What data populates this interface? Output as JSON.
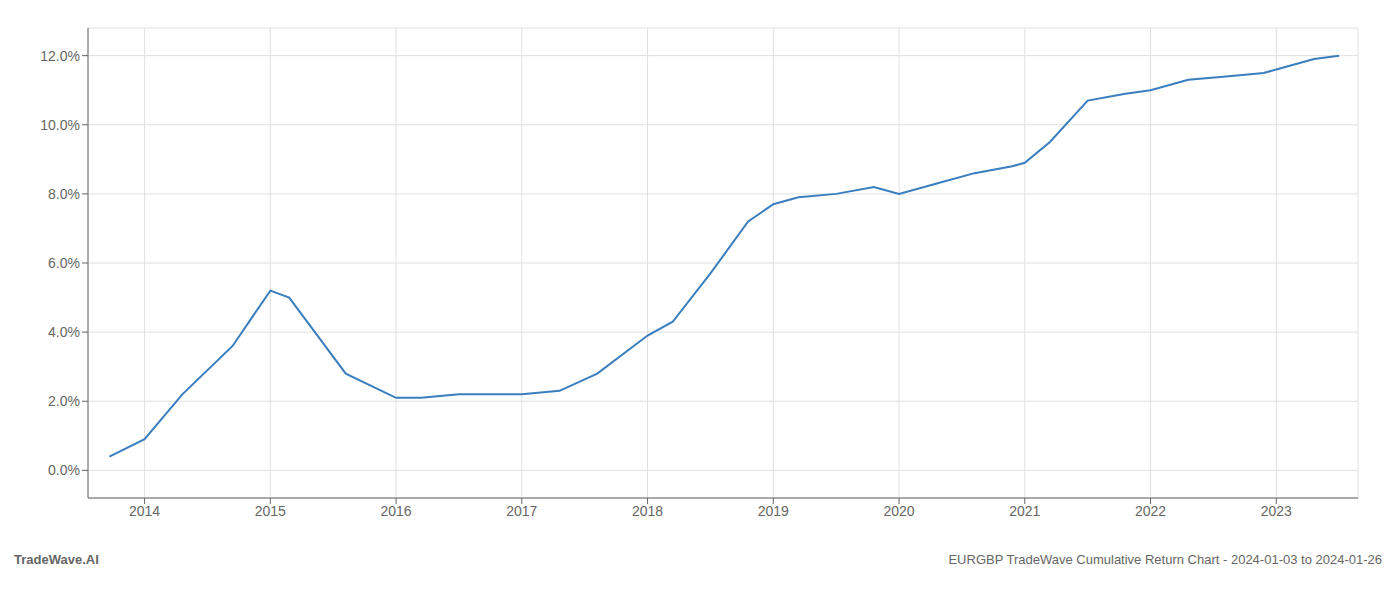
{
  "chart_data": {
    "type": "line",
    "x": [
      2013.72,
      2014.0,
      2014.3,
      2014.7,
      2015.0,
      2015.15,
      2015.6,
      2016.0,
      2016.2,
      2016.5,
      2017.0,
      2017.3,
      2017.6,
      2018.0,
      2018.2,
      2018.5,
      2018.8,
      2019.0,
      2019.2,
      2019.5,
      2019.8,
      2020.0,
      2020.3,
      2020.6,
      2020.9,
      2021.0,
      2021.2,
      2021.5,
      2021.8,
      2022.0,
      2022.3,
      2022.6,
      2022.9,
      2023.0,
      2023.3,
      2023.5
    ],
    "values": [
      0.004,
      0.009,
      0.022,
      0.036,
      0.052,
      0.05,
      0.028,
      0.021,
      0.021,
      0.022,
      0.022,
      0.023,
      0.028,
      0.039,
      0.043,
      0.057,
      0.072,
      0.077,
      0.079,
      0.08,
      0.082,
      0.08,
      0.083,
      0.086,
      0.088,
      0.089,
      0.095,
      0.107,
      0.109,
      0.11,
      0.113,
      0.114,
      0.115,
      0.116,
      0.119,
      0.12
    ],
    "color": "#3a7ebf",
    "xlim": [
      2013.55,
      2023.65
    ],
    "ylim": [
      -0.008,
      0.128
    ],
    "xticks": [
      2014,
      2015,
      2016,
      2017,
      2018,
      2019,
      2020,
      2021,
      2022,
      2023
    ],
    "yticks": [
      {
        "value": 0,
        "label": "0.0%"
      },
      {
        "value": 0.02,
        "label": "2.0%"
      },
      {
        "value": 0.04,
        "label": "4.0%"
      },
      {
        "value": 0.06,
        "label": "6.0%"
      },
      {
        "value": 0.08,
        "label": "8.0%"
      },
      {
        "value": 0.1,
        "label": "10.0%"
      },
      {
        "value": 0.12,
        "label": "12.0%"
      }
    ],
    "grid": true,
    "annotations": [
      "TradeWave.AI",
      "EURGBP TradeWave Cumulative Return Chart - 2024-01-03 to 2024-01-26"
    ]
  }
}
